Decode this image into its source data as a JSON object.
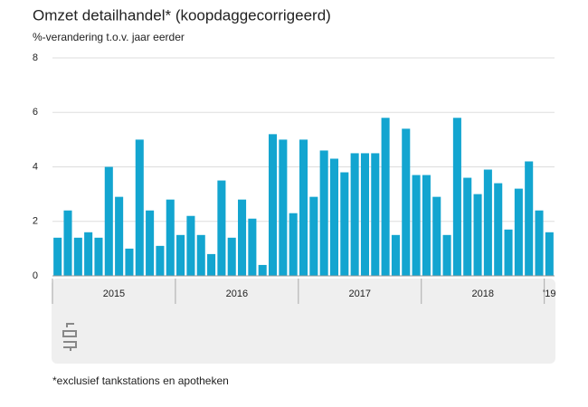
{
  "chart_data": {
    "type": "bar",
    "title": "Omzet detailhandel* (koopdaggecorrigeerd)",
    "subtitle": "%-verandering t.o.v. jaar eerder",
    "footnote": "*exclusief tankstations en apotheken",
    "categories": [
      "2015",
      null,
      null,
      null,
      null,
      null,
      null,
      null,
      null,
      null,
      null,
      null,
      "2016",
      null,
      null,
      null,
      null,
      null,
      null,
      null,
      null,
      null,
      null,
      null,
      "2017",
      null,
      null,
      null,
      null,
      null,
      null,
      null,
      null,
      null,
      null,
      null,
      "2018",
      null,
      null,
      null,
      null,
      null,
      null,
      null,
      null,
      null,
      null,
      null,
      "'19"
    ],
    "values": [
      1.4,
      2.4,
      1.4,
      1.6,
      1.4,
      4.0,
      2.9,
      1.0,
      5.0,
      2.4,
      1.1,
      2.8,
      1.5,
      2.2,
      1.5,
      0.8,
      3.5,
      1.4,
      2.8,
      2.1,
      0.4,
      5.2,
      5.0,
      2.3,
      5.0,
      2.9,
      4.6,
      4.3,
      3.8,
      4.5,
      4.5,
      4.5,
      5.8,
      1.5,
      5.4,
      3.7,
      3.7,
      2.9,
      1.5,
      5.8,
      3.6,
      3.0,
      3.9,
      3.4,
      1.7,
      3.2,
      4.2,
      2.4,
      1.6
    ],
    "color": "#13a5d0",
    "ylim": [
      0,
      8
    ],
    "yticks": [
      0,
      2,
      4,
      6,
      8
    ],
    "grid": true
  }
}
